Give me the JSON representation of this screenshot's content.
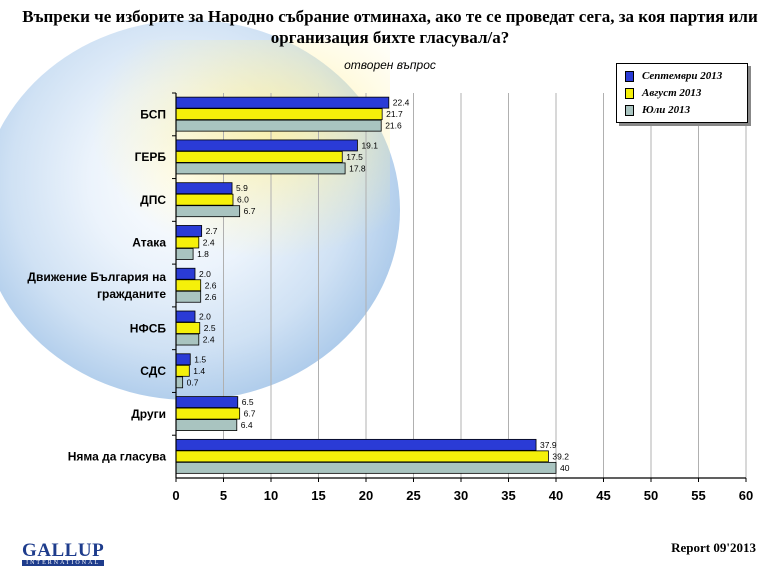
{
  "header": {
    "title": "Въпреки че изборите за Народно събрание отминаха, ако те се проведат сега, за коя партия или организация бихте гласувал/а?",
    "subtitle": "отворен въпрос"
  },
  "colors": {
    "series1": "#2a3bd6",
    "series2": "#f5f00a",
    "series3": "#a9c4c0",
    "grid": "#b0b0b0",
    "logo": "#1e3c8c"
  },
  "chart_data": {
    "type": "bar",
    "orientation": "horizontal",
    "categories": [
      "БСП",
      "ГЕРБ",
      "ДПС",
      "Атака",
      "Движение България на гражданите",
      "НФСБ",
      "СДС",
      "Други",
      "Няма да гласува"
    ],
    "category_lines": [
      [
        "БСП"
      ],
      [
        "ГЕРБ"
      ],
      [
        "ДПС"
      ],
      [
        "Атака"
      ],
      [
        "Движение България на",
        "гражданите"
      ],
      [
        "НФСБ"
      ],
      [
        "СДС"
      ],
      [
        "Други"
      ],
      [
        "Няма да гласува"
      ]
    ],
    "series": [
      {
        "name": "Септември 2013",
        "values": [
          22.4,
          19.1,
          5.9,
          2.7,
          2.0,
          2.0,
          1.5,
          6.5,
          37.9
        ],
        "labels": [
          "22.4",
          "19.1",
          "5.9",
          "2.7",
          "2.0",
          "2.0",
          "1.5",
          "6.5",
          "37.9"
        ]
      },
      {
        "name": "Август 2013",
        "values": [
          21.7,
          17.5,
          6.0,
          2.4,
          2.6,
          2.5,
          1.4,
          6.7,
          39.2
        ],
        "labels": [
          "21.7",
          "17.5",
          "6.0",
          "2.4",
          "2.6",
          "2.5",
          "1.4",
          "6.7",
          "39.2"
        ]
      },
      {
        "name": "Юли 2013",
        "values": [
          21.6,
          17.8,
          6.7,
          1.8,
          2.6,
          2.4,
          0.7,
          6.4,
          40
        ],
        "labels": [
          "21.6",
          "17.8",
          "6.7",
          "1.8",
          "2.6",
          "2.4",
          "0.7",
          "6.4",
          "40"
        ]
      }
    ],
    "xlim": [
      0,
      60
    ],
    "ticks": [
      0,
      5,
      10,
      15,
      20,
      25,
      30,
      35,
      40,
      45,
      50,
      55,
      60
    ],
    "grid": true,
    "legend_position": "top-right"
  },
  "footer": {
    "logo_main": "GALLUP",
    "logo_sub": "INTERNATIONAL",
    "report": "Report 09'2013"
  }
}
